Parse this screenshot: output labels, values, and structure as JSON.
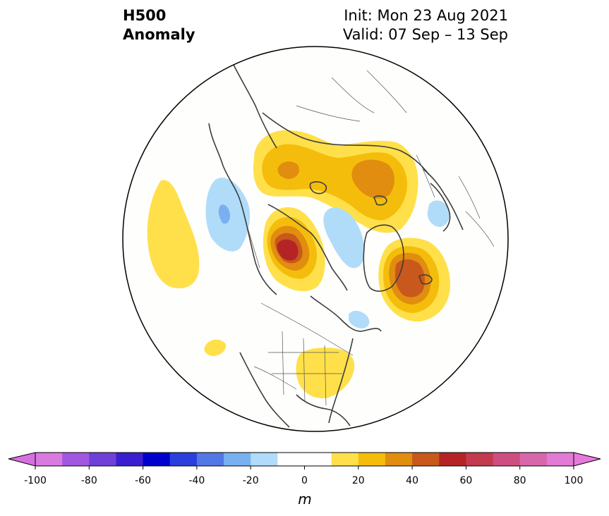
{
  "title": {
    "left_line1": "H500",
    "left_line2": "Anomaly",
    "right_line1": "Init: Mon 23 Aug 2021",
    "right_line2": "Valid: 07 Sep – 13 Sep"
  },
  "colorbar": {
    "unit": "m",
    "ticks": [
      "-100",
      "-80",
      "-60",
      "-40",
      "-20",
      "0",
      "20",
      "40",
      "60",
      "80",
      "100"
    ],
    "bins": [
      {
        "from": -100,
        "to": -90,
        "color": "#d87ae0"
      },
      {
        "from": -90,
        "to": -80,
        "color": "#a257e0"
      },
      {
        "from": -80,
        "to": -70,
        "color": "#7040d8"
      },
      {
        "from": -70,
        "to": -60,
        "color": "#3a1fcf"
      },
      {
        "from": -60,
        "to": -50,
        "color": "#0000cd"
      },
      {
        "from": -50,
        "to": -40,
        "color": "#2a3fdc"
      },
      {
        "from": -40,
        "to": -30,
        "color": "#5277e6"
      },
      {
        "from": -30,
        "to": -20,
        "color": "#79b0f0"
      },
      {
        "from": -20,
        "to": -10,
        "color": "#b0dcfa"
      },
      {
        "from": -10,
        "to": 10,
        "color": "#ffffff"
      },
      {
        "from": 10,
        "to": 20,
        "color": "#ffe04a"
      },
      {
        "from": 20,
        "to": 30,
        "color": "#f4bd0b"
      },
      {
        "from": 30,
        "to": 40,
        "color": "#e08d10"
      },
      {
        "from": 40,
        "to": 50,
        "color": "#c8581c"
      },
      {
        "from": 50,
        "to": 60,
        "color": "#b42424"
      },
      {
        "from": 60,
        "to": 70,
        "color": "#c43a4e"
      },
      {
        "from": 70,
        "to": 80,
        "color": "#cf4e82"
      },
      {
        "from": 80,
        "to": 90,
        "color": "#d766aa"
      },
      {
        "from": 90,
        "to": 100,
        "color": "#e27ad6"
      }
    ],
    "extend_low_color": "#d670e0",
    "extend_high_color": "#e67ad8"
  },
  "map": {
    "projection": "north-polar-stereographic",
    "background": "#fefefd",
    "coastline_color": "#3d3d3d",
    "anomalies": [
      {
        "region": "eastern-pacific",
        "value": 15
      },
      {
        "region": "gulf-of-alaska",
        "value": -25
      },
      {
        "region": "alaska-beaufort",
        "value": 55
      },
      {
        "region": "canadian-archipelago",
        "value": -15
      },
      {
        "region": "greenland-north-atlantic",
        "value": 45
      },
      {
        "region": "labrador-sea",
        "value": -15
      },
      {
        "region": "siberia-arctic",
        "value": 35
      },
      {
        "region": "eastern-europe",
        "value": -15
      },
      {
        "region": "central-us",
        "value": 15
      },
      {
        "region": "mexico-offshore",
        "value": 15
      }
    ]
  }
}
